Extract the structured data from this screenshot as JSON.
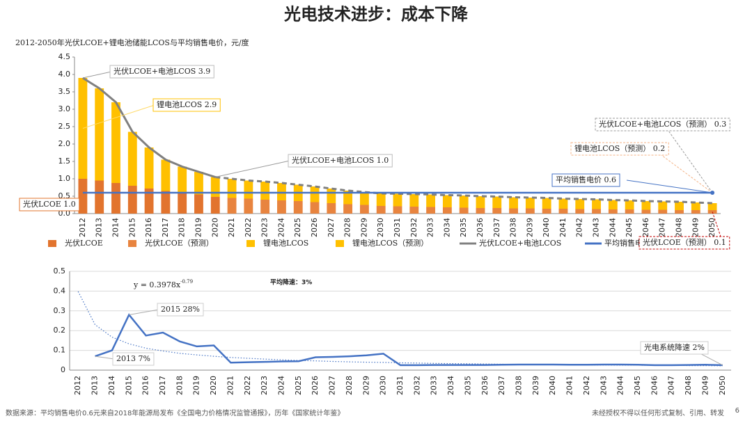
{
  "title": "光电技术进步：成本下降",
  "footer_left": "数据来源：平均销售电价0.6元来自2018年能源局发布《全国电力价格情况监管通报》，历年《国家统计年鉴》",
  "footer_right": "未经授权不得以任何形式复制、引用、转发",
  "page_number": "6",
  "chart_data": [
    {
      "type": "bar",
      "stacked": true,
      "title": "2012-2050年光伏LCOE+锂电池储能LCOS与平均销售电价，元/度",
      "categories": [
        "2012",
        "2013",
        "2014",
        "2015",
        "2016",
        "2017",
        "2018",
        "2019",
        "2020",
        "2021",
        "2022",
        "2023",
        "2024",
        "2025",
        "2026",
        "2027",
        "2028",
        "2029",
        "2030",
        "2031",
        "2032",
        "2033",
        "2034",
        "2035",
        "2036",
        "2037",
        "2038",
        "2039",
        "2040",
        "2041",
        "2042",
        "2043",
        "2044",
        "2045",
        "2046",
        "2047",
        "2048",
        "2049",
        "2050"
      ],
      "ylim": [
        0,
        4.5
      ],
      "yticks": [
        {
          "value": 0,
          "label": "0.0"
        },
        0.5,
        {
          "value": 1,
          "label": "1.0"
        },
        1.5,
        {
          "value": 2,
          "label": "2.0"
        },
        2.5,
        {
          "value": 3,
          "label": "3.0"
        },
        3.5,
        {
          "value": 4,
          "label": "4.0"
        },
        4.5
      ],
      "grid": false,
      "series": [
        {
          "name": "光伏LCOE",
          "color": "#e2742e",
          "values": [
            1.0,
            0.95,
            0.88,
            0.8,
            0.72,
            0.65,
            0.6,
            0.55,
            0.48,
            null,
            null,
            null,
            null,
            null,
            null,
            null,
            null,
            null,
            null,
            null,
            null,
            null,
            null,
            null,
            null,
            null,
            null,
            null,
            null,
            null,
            null,
            null,
            null,
            null,
            null,
            null,
            null,
            null,
            null
          ]
        },
        {
          "name": "光伏LCOE（预测）",
          "color": "#e8843f",
          "values": [
            null,
            null,
            null,
            null,
            null,
            null,
            null,
            null,
            null,
            0.45,
            0.43,
            0.4,
            0.38,
            0.36,
            0.33,
            0.3,
            0.27,
            0.25,
            0.22,
            0.21,
            0.2,
            0.19,
            0.18,
            0.17,
            0.16,
            0.16,
            0.15,
            0.15,
            0.14,
            0.14,
            0.13,
            0.13,
            0.12,
            0.12,
            0.11,
            0.11,
            0.1,
            0.1,
            0.1
          ]
        },
        {
          "name": "锂电池LCOS",
          "color": "#ffc000",
          "values": [
            2.9,
            2.65,
            2.32,
            1.55,
            1.18,
            0.9,
            0.75,
            0.65,
            0.57,
            null,
            null,
            null,
            null,
            null,
            null,
            null,
            null,
            null,
            null,
            null,
            null,
            null,
            null,
            null,
            null,
            null,
            null,
            null,
            null,
            null,
            null,
            null,
            null,
            null,
            null,
            null,
            null,
            null,
            null
          ]
        },
        {
          "name": "锂电池LCOS（预测）",
          "color": "#ffc000",
          "values": [
            null,
            null,
            null,
            null,
            null,
            null,
            null,
            null,
            null,
            0.55,
            0.52,
            0.52,
            0.5,
            0.47,
            0.45,
            0.42,
            0.39,
            0.37,
            0.36,
            0.36,
            0.36,
            0.36,
            0.35,
            0.35,
            0.34,
            0.33,
            0.32,
            0.31,
            0.31,
            0.29,
            0.29,
            0.28,
            0.27,
            0.26,
            0.25,
            0.24,
            0.24,
            0.22,
            0.2
          ]
        },
        {
          "name": "光伏LCOE+电池LCOS",
          "type": "line",
          "color": "#808080",
          "values": [
            3.9,
            3.6,
            3.2,
            2.35,
            1.9,
            1.55,
            1.35,
            1.2,
            1.05,
            1.0,
            0.95,
            0.92,
            0.88,
            0.83,
            0.78,
            0.72,
            0.66,
            0.62,
            0.58,
            0.57,
            0.56,
            0.55,
            0.53,
            0.52,
            0.5,
            0.49,
            0.47,
            0.46,
            0.45,
            0.43,
            0.42,
            0.41,
            0.39,
            0.38,
            0.36,
            0.35,
            0.34,
            0.32,
            0.3
          ]
        },
        {
          "name": "平均销售电价",
          "type": "line",
          "color": "#4472c4",
          "values": [
            0.6,
            0.6,
            0.6,
            0.6,
            0.6,
            0.6,
            0.6,
            0.6,
            0.6,
            0.6,
            0.6,
            0.6,
            0.6,
            0.6,
            0.6,
            0.6,
            0.6,
            0.6,
            0.6,
            0.6,
            0.6,
            0.6,
            0.6,
            0.6,
            0.6,
            0.6,
            0.6,
            0.6,
            0.6,
            0.6,
            0.6,
            0.6,
            0.6,
            0.6,
            0.6,
            0.6,
            0.6,
            0.6,
            0.6
          ]
        }
      ],
      "annotations": [
        "光伏LCOE+电池LCOS 3.9",
        "锂电池LCOS 2.9",
        "光伏LCOE+电池LCOS 1.0",
        "光伏LCOE 1.0",
        "光伏LCOE+电池LCOS（预测） 0.3",
        "锂电池LCOS（预测） 0.2",
        "平均销售电价 0.6",
        "光伏LCOE（预测） 0.1"
      ]
    },
    {
      "type": "line",
      "categories": [
        "2012",
        "2013",
        "2014",
        "2015",
        "2016",
        "2017",
        "2018",
        "2019",
        "2020",
        "2021",
        "2022",
        "2023",
        "2024",
        "2025",
        "2026",
        "2027",
        "2028",
        "2029",
        "2030",
        "2031",
        "2032",
        "2033",
        "2034",
        "2035",
        "2036",
        "2037",
        "2038",
        "2039",
        "2040",
        "2041",
        "2042",
        "2043",
        "2044",
        "2045",
        "2046",
        "2047",
        "2048",
        "2049",
        "2050"
      ],
      "ylim": [
        0,
        0.5
      ],
      "yticks": [
        0,
        0.1,
        0.2,
        0.3,
        0.4,
        0.5
      ],
      "grid": true,
      "series": [
        {
          "color": "#4472c4",
          "values": [
            null,
            0.07,
            0.1,
            0.28,
            0.175,
            0.19,
            0.145,
            0.12,
            0.125,
            0.038,
            0.04,
            0.042,
            0.044,
            0.045,
            0.065,
            0.067,
            0.07,
            0.075,
            0.083,
            0.025,
            0.025,
            0.026,
            0.026,
            0.026,
            0.026,
            0.027,
            0.028,
            0.028,
            0.028,
            0.027,
            0.027,
            0.028,
            0.028,
            0.027,
            0.025,
            0.025,
            0.026,
            0.027,
            0.025
          ]
        }
      ],
      "trendline": {
        "color": "#4472c4",
        "equation": "y = 0.3978x",
        "exponent": "-0.79",
        "values": [
          0.398,
          0.23,
          0.167,
          0.133,
          0.111,
          0.097,
          0.085,
          0.077,
          0.07,
          0.064,
          0.06,
          0.056,
          0.052,
          0.049,
          0.047,
          0.044,
          0.042,
          0.04,
          0.039,
          0.037,
          0.036,
          0.034,
          0.033,
          0.032,
          0.031,
          0.03,
          0.029,
          0.029,
          0.028,
          0.027,
          0.026,
          0.026,
          0.025,
          0.025,
          0.024,
          0.024,
          0.023,
          0.023,
          0.022
        ]
      },
      "annotations": [
        "2015 28%",
        "2013 7%",
        "光电系统降速 2%",
        "平均降速：3%"
      ]
    }
  ]
}
